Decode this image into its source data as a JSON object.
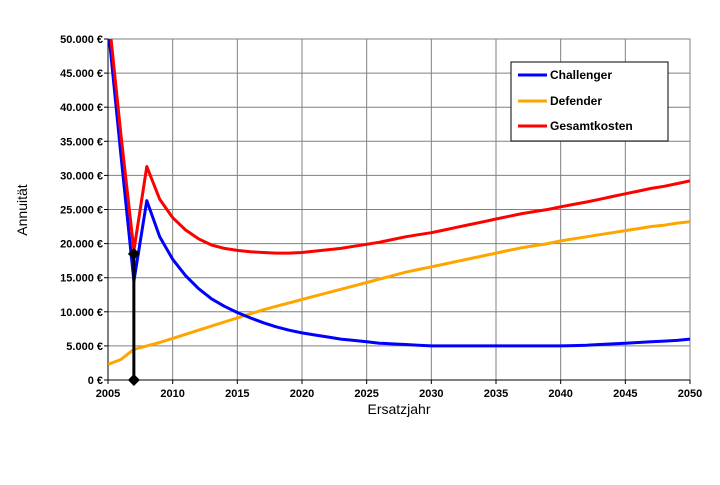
{
  "chart_data": {
    "type": "line",
    "title": "",
    "xlabel": "Ersatzjahr",
    "ylabel": "Annuität",
    "xlim": [
      2005,
      2050
    ],
    "ylim": [
      0,
      50000
    ],
    "grid": true,
    "legend_position": "top-right",
    "x_ticks": [
      "2005",
      "2010",
      "2015",
      "2020",
      "2025",
      "2030",
      "2035",
      "2040",
      "2045",
      "2050"
    ],
    "y_ticks": [
      "0 €",
      "5.000 €",
      "10.000 €",
      "15.000 €",
      "20.000 €",
      "25.000 €",
      "30.000 €",
      "35.000 €",
      "40.000 €",
      "45.000 €",
      "50.000 €"
    ],
    "x": [
      2005,
      2006,
      2007,
      2008,
      2009,
      2010,
      2011,
      2012,
      2013,
      2014,
      2015,
      2016,
      2017,
      2018,
      2019,
      2020,
      2021,
      2022,
      2023,
      2024,
      2025,
      2026,
      2027,
      2028,
      2029,
      2030,
      2031,
      2032,
      2033,
      2034,
      2035,
      2036,
      2037,
      2038,
      2039,
      2040,
      2041,
      2042,
      2043,
      2044,
      2045,
      2046,
      2047,
      2048,
      2049,
      2050
    ],
    "series": [
      {
        "name": "Challenger",
        "color": "#0000ff",
        "values": [
          52000,
          33000,
          14500,
          26300,
          21000,
          17700,
          15300,
          13400,
          11900,
          10800,
          9900,
          9100,
          8400,
          7800,
          7300,
          6900,
          6600,
          6300,
          6000,
          5800,
          5600,
          5400,
          5300,
          5200,
          5100,
          5000,
          5000,
          5000,
          5000,
          5000,
          5000,
          5000,
          5000,
          5000,
          5000,
          5000,
          5050,
          5100,
          5200,
          5300,
          5400,
          5500,
          5600,
          5700,
          5800,
          6000
        ]
      },
      {
        "name": "Defender",
        "color": "#ffa500",
        "values": [
          2300,
          3000,
          4500,
          5000,
          5500,
          6100,
          6700,
          7300,
          7900,
          8500,
          9100,
          9700,
          10300,
          10800,
          11300,
          11800,
          12300,
          12800,
          13300,
          13800,
          14300,
          14800,
          15300,
          15800,
          16200,
          16600,
          17000,
          17400,
          17800,
          18200,
          18600,
          19000,
          19400,
          19700,
          20000,
          20400,
          20700,
          21000,
          21300,
          21600,
          21900,
          22200,
          22500,
          22700,
          23000,
          23200
        ]
      },
      {
        "name": "Gesamtkosten",
        "color": "#ff0000",
        "values": [
          54300,
          36000,
          19000,
          31300,
          26500,
          23800,
          22000,
          20700,
          19800,
          19300,
          19000,
          18800,
          18700,
          18600,
          18600,
          18700,
          18900,
          19100,
          19300,
          19600,
          19900,
          20200,
          20600,
          21000,
          21300,
          21600,
          22000,
          22400,
          22800,
          23200,
          23600,
          24000,
          24400,
          24700,
          25000,
          25400,
          25750,
          26100,
          26500,
          26900,
          27300,
          27700,
          28100,
          28400,
          28800,
          29200
        ]
      }
    ],
    "marker": {
      "x": 2007,
      "y_from": 0,
      "y_to": 18500,
      "color": "#000000"
    }
  }
}
